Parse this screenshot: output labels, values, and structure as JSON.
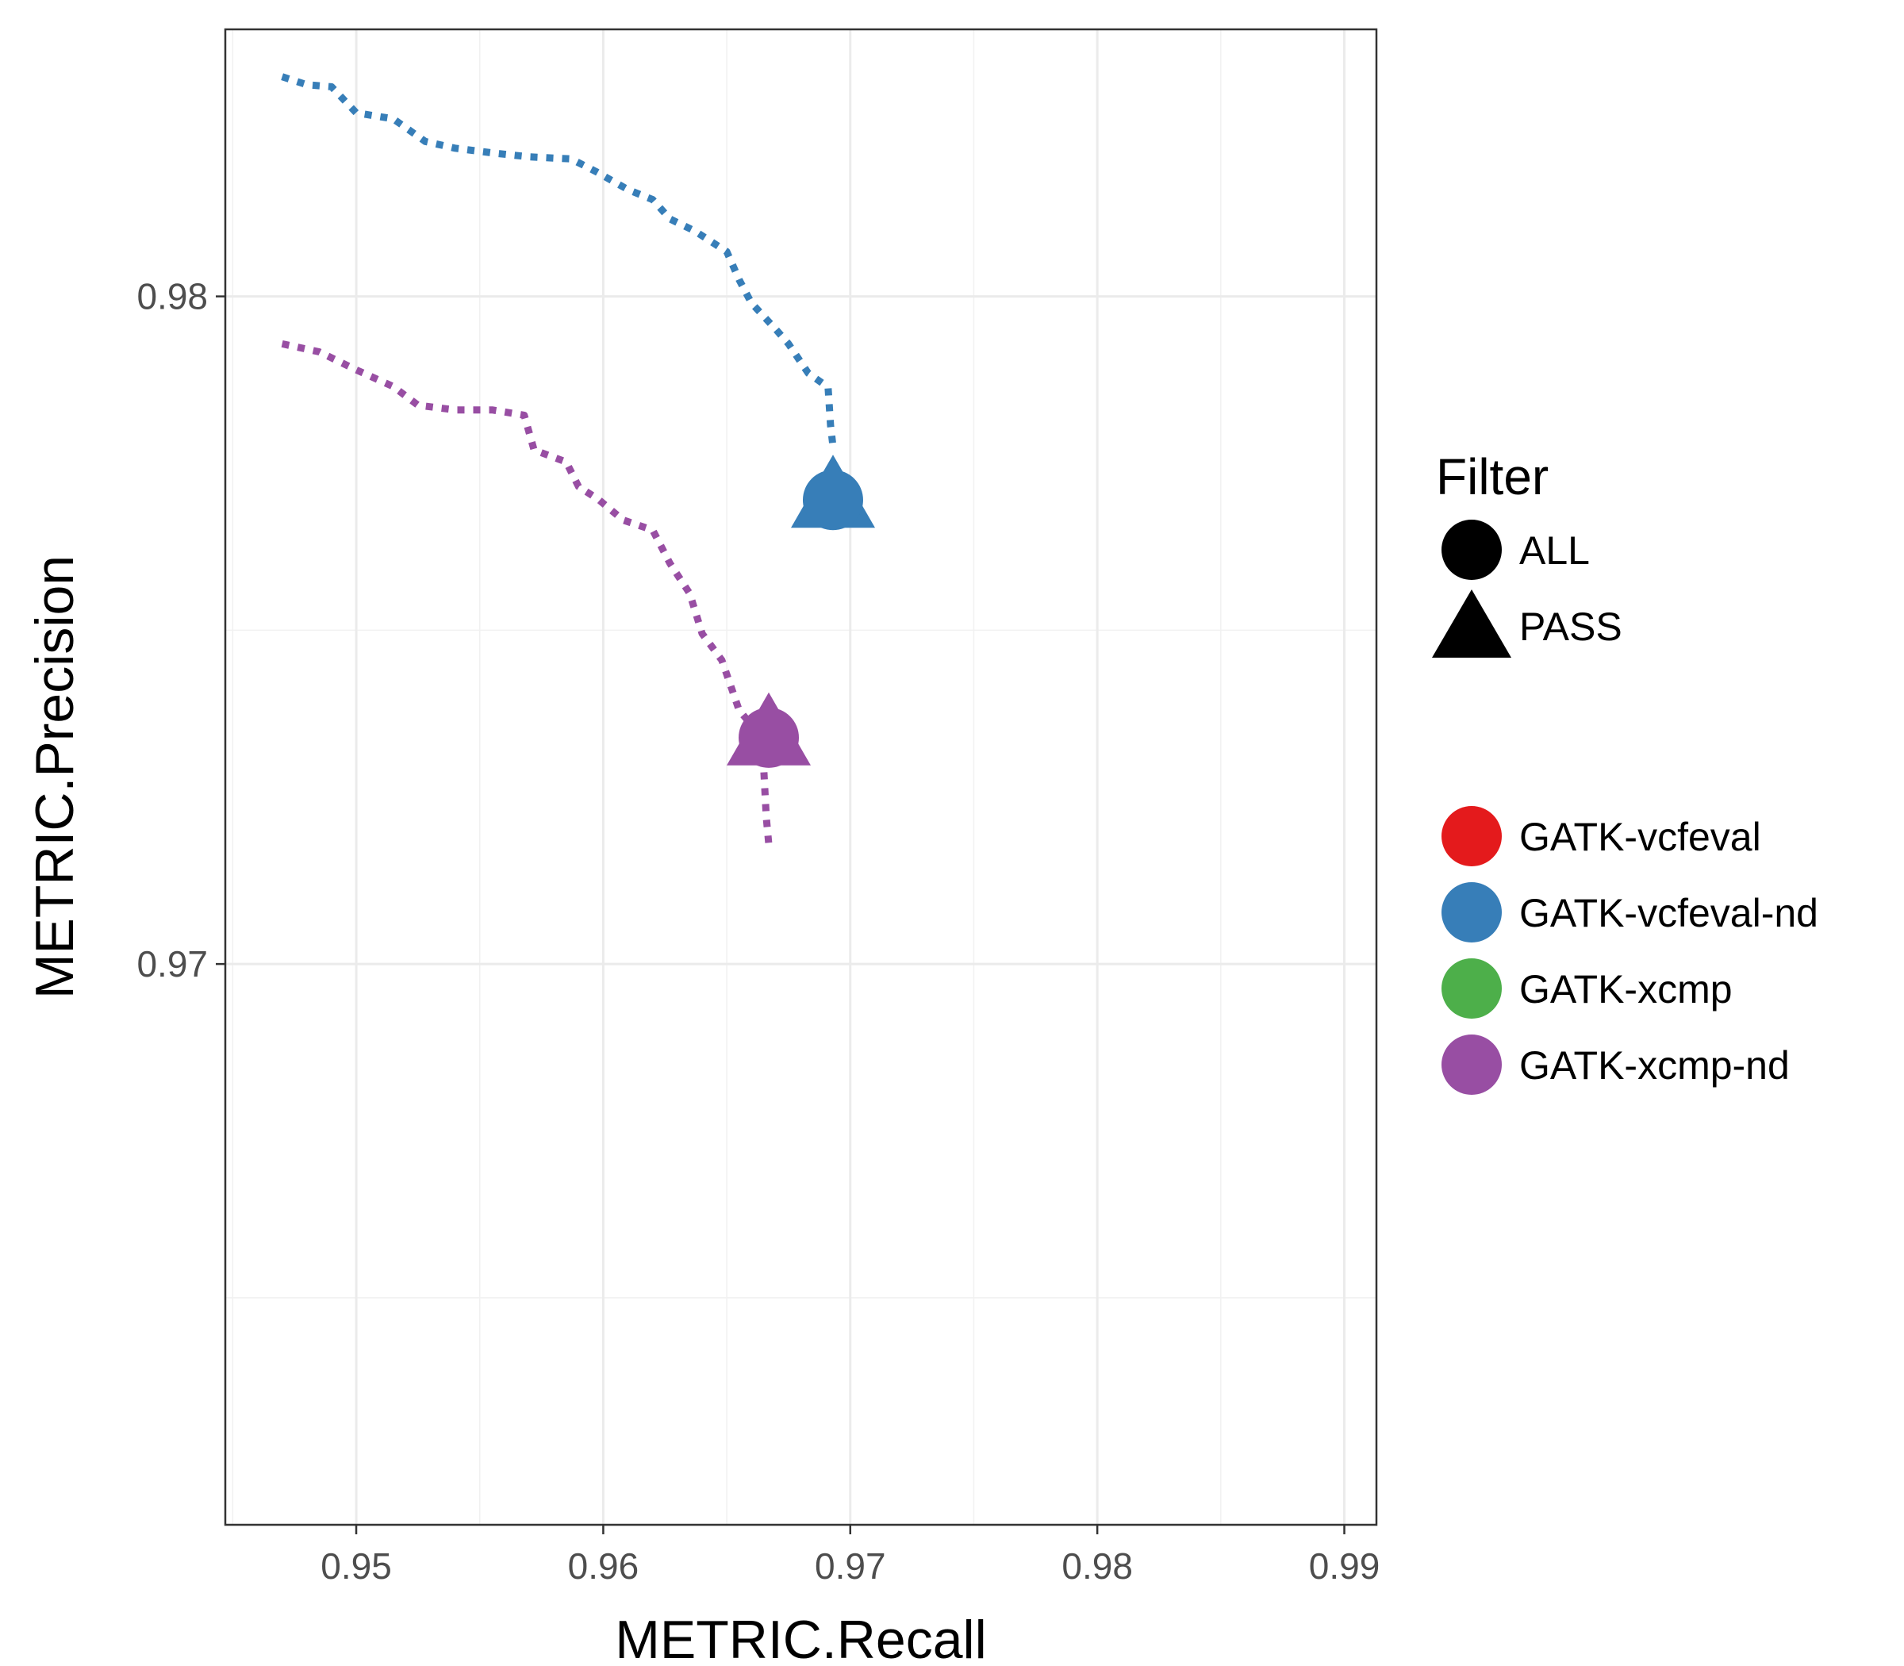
{
  "chart_data": {
    "type": "line",
    "xlabel": "METRIC.Recall",
    "ylabel": "METRIC.Precision",
    "xlim": [
      0.9447,
      0.9913
    ],
    "ylim": [
      0.9616,
      0.984
    ],
    "x_ticks": [
      0.95,
      0.96,
      0.97,
      0.98,
      0.99
    ],
    "x_tick_labels": [
      "0.95",
      "0.96",
      "0.97",
      "0.98",
      "0.99"
    ],
    "y_ticks": [
      0.97,
      0.98
    ],
    "y_tick_labels": [
      "0.97",
      "0.98"
    ],
    "grid": true,
    "legend_position": "right",
    "shape_legend": {
      "title": "Filter",
      "items": [
        {
          "label": "ALL",
          "shape": "circle"
        },
        {
          "label": "PASS",
          "shape": "triangle"
        }
      ]
    },
    "color_legend": {
      "items": [
        {
          "label": "GATK-vcfeval",
          "color": "#e41a1c"
        },
        {
          "label": "GATK-vcfeval-nd",
          "color": "#377eb8"
        },
        {
          "label": "GATK-xcmp",
          "color": "#4daf4a"
        },
        {
          "label": "GATK-xcmp-nd",
          "color": "#984ea3"
        }
      ]
    },
    "series": [
      {
        "name": "GATK-vcfeval-nd",
        "color": "#377eb8",
        "line_style": "dotted",
        "x": [
          0.947,
          0.948,
          0.949,
          0.95,
          0.9515,
          0.9528,
          0.954,
          0.9555,
          0.957,
          0.9587,
          0.9597,
          0.961,
          0.962,
          0.9627,
          0.9637,
          0.965,
          0.9655,
          0.966,
          0.967,
          0.9675,
          0.9683,
          0.9691,
          0.9692,
          0.9693
        ],
        "y": [
          0.98329,
          0.98317,
          0.98314,
          0.98275,
          0.98266,
          0.98232,
          0.98222,
          0.98215,
          0.98209,
          0.98206,
          0.98187,
          0.9816,
          0.98145,
          0.98116,
          0.98098,
          0.98067,
          0.98025,
          0.9799,
          0.9795,
          0.97929,
          0.97885,
          0.97864,
          0.97807,
          0.97775
        ],
        "all_point": {
          "x": 0.9693,
          "y": 0.97695
        },
        "pass_point": {
          "x": 0.9693,
          "y": 0.97695
        }
      },
      {
        "name": "GATK-xcmp-nd",
        "color": "#984ea3",
        "line_style": "dotted",
        "x": [
          0.947,
          0.9485,
          0.95,
          0.9515,
          0.9525,
          0.954,
          0.9555,
          0.9568,
          0.9572,
          0.9585,
          0.959,
          0.9598,
          0.9608,
          0.962,
          0.9627,
          0.9635,
          0.964,
          0.9648,
          0.9655,
          0.9663,
          0.9665,
          0.9666,
          0.9667
        ],
        "y": [
          0.97929,
          0.97917,
          0.9789,
          0.97865,
          0.97837,
          0.9783,
          0.9783,
          0.97822,
          0.9777,
          0.97752,
          0.97715,
          0.97696,
          0.97665,
          0.9765,
          0.976,
          0.97555,
          0.97495,
          0.97455,
          0.9738,
          0.97345,
          0.9729,
          0.9722,
          0.9718
        ],
        "all_point": {
          "x": 0.9667,
          "y": 0.97339
        },
        "pass_point": {
          "x": 0.9667,
          "y": 0.97339
        }
      }
    ]
  }
}
